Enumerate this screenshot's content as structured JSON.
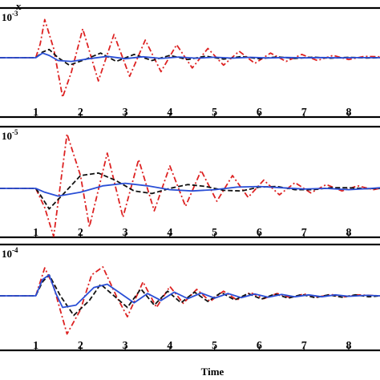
{
  "chart_data": {
    "type": "line",
    "xlabel": "Time",
    "top_axis_label": "x",
    "xlim": [
      0.2,
      8.7
    ],
    "x_ticks": [
      1,
      2,
      3,
      4,
      5,
      6,
      7,
      8
    ],
    "x_tick_labels": [
      "1",
      "2",
      "3",
      "4",
      "5",
      "6",
      "7",
      "8"
    ],
    "step_time": 1.0,
    "grid": false,
    "legend": "none",
    "colors": {
      "red": "#dd2222",
      "black": "#111111",
      "blue": "#2a4fd6",
      "frame": "#000000"
    },
    "panels": [
      {
        "scale_base": "10",
        "scale_exp": "-3",
        "series": [
          {
            "color": "red",
            "style": "dashdot",
            "points": [
              [
                0.2,
                0
              ],
              [
                1.0,
                0
              ],
              [
                1.1,
                0.3
              ],
              [
                1.2,
                0.82
              ],
              [
                1.4,
                0.2
              ],
              [
                1.6,
                -0.85
              ],
              [
                1.8,
                -0.3
              ],
              [
                2.05,
                0.62
              ],
              [
                2.4,
                -0.5
              ],
              [
                2.75,
                0.5
              ],
              [
                3.1,
                -0.4
              ],
              [
                3.45,
                0.38
              ],
              [
                3.8,
                -0.3
              ],
              [
                4.15,
                0.28
              ],
              [
                4.5,
                -0.22
              ],
              [
                4.85,
                0.2
              ],
              [
                5.2,
                -0.16
              ],
              [
                5.55,
                0.14
              ],
              [
                5.9,
                -0.12
              ],
              [
                6.25,
                0.1
              ],
              [
                6.6,
                -0.08
              ],
              [
                6.95,
                0.07
              ],
              [
                7.3,
                -0.06
              ],
              [
                7.65,
                0.05
              ],
              [
                8.0,
                -0.04
              ],
              [
                8.35,
                0.03
              ],
              [
                8.7,
                0.02
              ]
            ]
          },
          {
            "color": "black",
            "style": "dashed",
            "points": [
              [
                0.2,
                0
              ],
              [
                1.0,
                0
              ],
              [
                1.15,
                0.12
              ],
              [
                1.3,
                0.18
              ],
              [
                1.5,
                0.0
              ],
              [
                1.75,
                -0.16
              ],
              [
                2.1,
                -0.04
              ],
              [
                2.45,
                0.1
              ],
              [
                2.8,
                -0.08
              ],
              [
                3.2,
                0.07
              ],
              [
                3.6,
                -0.06
              ],
              [
                4.0,
                0.05
              ],
              [
                4.4,
                -0.04
              ],
              [
                4.8,
                0.035
              ],
              [
                5.2,
                -0.03
              ],
              [
                5.6,
                0.025
              ],
              [
                6.0,
                -0.02
              ],
              [
                6.4,
                0.018
              ],
              [
                6.8,
                -0.015
              ],
              [
                7.2,
                0.012
              ],
              [
                7.6,
                -0.01
              ],
              [
                8.0,
                0.008
              ],
              [
                8.4,
                -0.006
              ],
              [
                8.7,
                0.0
              ]
            ]
          },
          {
            "color": "blue",
            "style": "solid",
            "points": [
              [
                0.2,
                0
              ],
              [
                1.0,
                0
              ],
              [
                1.15,
                0.1
              ],
              [
                1.3,
                0.05
              ],
              [
                1.5,
                -0.06
              ],
              [
                1.8,
                -0.08
              ],
              [
                2.2,
                -0.02
              ],
              [
                2.6,
                0.03
              ],
              [
                3.0,
                -0.02
              ],
              [
                3.4,
                0.02
              ],
              [
                3.8,
                -0.015
              ],
              [
                4.2,
                0.015
              ],
              [
                4.6,
                -0.01
              ],
              [
                5.0,
                0.01
              ],
              [
                5.4,
                -0.008
              ],
              [
                5.8,
                0.008
              ],
              [
                6.2,
                -0.006
              ],
              [
                6.6,
                0.005
              ],
              [
                7.0,
                -0.004
              ],
              [
                7.4,
                0.004
              ],
              [
                7.8,
                -0.003
              ],
              [
                8.2,
                0.002
              ],
              [
                8.7,
                0.0
              ]
            ]
          }
        ]
      },
      {
        "scale_base": "10",
        "scale_exp": "-5",
        "series": [
          {
            "color": "red",
            "style": "dashdot",
            "points": [
              [
                0.2,
                0
              ],
              [
                1.0,
                0
              ],
              [
                1.2,
                -0.3
              ],
              [
                1.4,
                -0.75
              ],
              [
                1.7,
                0.85
              ],
              [
                2.0,
                0.2
              ],
              [
                2.2,
                -0.6
              ],
              [
                2.6,
                0.55
              ],
              [
                2.95,
                -0.45
              ],
              [
                3.3,
                0.45
              ],
              [
                3.65,
                -0.35
              ],
              [
                4.0,
                0.35
              ],
              [
                4.35,
                -0.28
              ],
              [
                4.7,
                0.28
              ],
              [
                5.05,
                -0.2
              ],
              [
                5.4,
                0.2
              ],
              [
                5.75,
                -0.14
              ],
              [
                6.1,
                0.13
              ],
              [
                6.45,
                -0.1
              ],
              [
                6.8,
                0.09
              ],
              [
                7.15,
                -0.07
              ],
              [
                7.5,
                0.06
              ],
              [
                7.85,
                -0.04
              ],
              [
                8.2,
                0.04
              ],
              [
                8.55,
                -0.02
              ],
              [
                8.7,
                0.0
              ]
            ]
          },
          {
            "color": "black",
            "style": "dashed",
            "points": [
              [
                0.2,
                0
              ],
              [
                1.0,
                0
              ],
              [
                1.1,
                -0.1
              ],
              [
                1.3,
                -0.32
              ],
              [
                1.6,
                -0.1
              ],
              [
                2.0,
                0.2
              ],
              [
                2.4,
                0.24
              ],
              [
                2.8,
                0.12
              ],
              [
                3.2,
                -0.04
              ],
              [
                3.6,
                -0.08
              ],
              [
                4.0,
                0.0
              ],
              [
                4.4,
                0.06
              ],
              [
                4.8,
                0.03
              ],
              [
                5.2,
                -0.03
              ],
              [
                5.6,
                -0.04
              ],
              [
                6.0,
                0.02
              ],
              [
                6.4,
                0.03
              ],
              [
                6.8,
                -0.02
              ],
              [
                7.2,
                -0.02
              ],
              [
                7.6,
                0.01
              ],
              [
                8.0,
                0.01
              ],
              [
                8.4,
                -0.005
              ],
              [
                8.7,
                0.0
              ]
            ]
          },
          {
            "color": "blue",
            "style": "solid",
            "points": [
              [
                0.2,
                0
              ],
              [
                1.0,
                0
              ],
              [
                1.2,
                -0.06
              ],
              [
                1.5,
                -0.12
              ],
              [
                2.0,
                -0.06
              ],
              [
                2.5,
                0.04
              ],
              [
                3.0,
                0.08
              ],
              [
                3.5,
                0.04
              ],
              [
                4.0,
                -0.02
              ],
              [
                4.5,
                -0.04
              ],
              [
                5.0,
                -0.02
              ],
              [
                5.5,
                0.02
              ],
              [
                6.0,
                0.03
              ],
              [
                6.5,
                0.01
              ],
              [
                7.0,
                -0.01
              ],
              [
                7.5,
                0.0
              ],
              [
                8.0,
                -0.02
              ],
              [
                8.5,
                0.0
              ],
              [
                8.7,
                0.01
              ]
            ]
          }
        ]
      },
      {
        "scale_base": "10",
        "scale_exp": "-4",
        "series": [
          {
            "color": "red",
            "style": "dashdot",
            "points": [
              [
                0.2,
                0
              ],
              [
                1.0,
                0
              ],
              [
                1.2,
                0.6
              ],
              [
                1.4,
                0.2
              ],
              [
                1.7,
                -0.82
              ],
              [
                2.0,
                -0.3
              ],
              [
                2.25,
                0.45
              ],
              [
                2.5,
                0.62
              ],
              [
                2.8,
                0.0
              ],
              [
                3.05,
                -0.45
              ],
              [
                3.4,
                0.3
              ],
              [
                3.7,
                -0.25
              ],
              [
                4.0,
                0.2
              ],
              [
                4.3,
                -0.16
              ],
              [
                4.6,
                0.14
              ],
              [
                4.9,
                -0.12
              ],
              [
                5.2,
                0.1
              ],
              [
                5.5,
                -0.09
              ],
              [
                5.8,
                0.07
              ],
              [
                6.1,
                -0.06
              ],
              [
                6.4,
                0.05
              ],
              [
                6.7,
                -0.04
              ],
              [
                7.0,
                0.04
              ],
              [
                7.3,
                -0.03
              ],
              [
                7.6,
                0.03
              ],
              [
                7.9,
                -0.02
              ],
              [
                8.2,
                0.02
              ],
              [
                8.7,
                0.0
              ]
            ]
          },
          {
            "color": "black",
            "style": "dashed",
            "points": [
              [
                0.2,
                0
              ],
              [
                1.0,
                0
              ],
              [
                1.15,
                0.3
              ],
              [
                1.3,
                0.45
              ],
              [
                1.55,
                0.0
              ],
              [
                1.85,
                -0.42
              ],
              [
                2.2,
                -0.1
              ],
              [
                2.45,
                0.25
              ],
              [
                2.75,
                0.0
              ],
              [
                3.05,
                -0.25
              ],
              [
                3.35,
                0.15
              ],
              [
                3.65,
                -0.2
              ],
              [
                3.95,
                0.1
              ],
              [
                4.25,
                -0.15
              ],
              [
                4.55,
                0.08
              ],
              [
                4.85,
                -0.12
              ],
              [
                5.15,
                0.07
              ],
              [
                5.45,
                -0.09
              ],
              [
                5.75,
                0.05
              ],
              [
                6.05,
                -0.07
              ],
              [
                6.35,
                0.04
              ],
              [
                6.65,
                -0.05
              ],
              [
                6.95,
                0.03
              ],
              [
                7.25,
                -0.04
              ],
              [
                7.55,
                0.02
              ],
              [
                7.85,
                -0.03
              ],
              [
                8.15,
                0.02
              ],
              [
                8.45,
                -0.02
              ],
              [
                8.7,
                0.0
              ]
            ]
          },
          {
            "color": "blue",
            "style": "solid",
            "points": [
              [
                0.2,
                0
              ],
              [
                1.0,
                0
              ],
              [
                1.15,
                0.35
              ],
              [
                1.3,
                0.45
              ],
              [
                1.45,
                0.05
              ],
              [
                1.6,
                -0.25
              ],
              [
                1.9,
                -0.2
              ],
              [
                2.3,
                0.18
              ],
              [
                2.6,
                0.25
              ],
              [
                2.9,
                0.05
              ],
              [
                3.2,
                -0.15
              ],
              [
                3.5,
                0.05
              ],
              [
                3.8,
                -0.1
              ],
              [
                4.1,
                0.08
              ],
              [
                4.4,
                -0.06
              ],
              [
                4.7,
                0.06
              ],
              [
                5.0,
                -0.05
              ],
              [
                5.3,
                0.05
              ],
              [
                5.6,
                -0.04
              ],
              [
                5.9,
                0.04
              ],
              [
                6.2,
                -0.03
              ],
              [
                6.5,
                0.03
              ],
              [
                6.8,
                -0.02
              ],
              [
                7.1,
                0.02
              ],
              [
                7.4,
                -0.02
              ],
              [
                7.7,
                0.02
              ],
              [
                8.0,
                -0.01
              ],
              [
                8.4,
                0.01
              ],
              [
                8.7,
                0.0
              ]
            ]
          }
        ]
      }
    ]
  }
}
